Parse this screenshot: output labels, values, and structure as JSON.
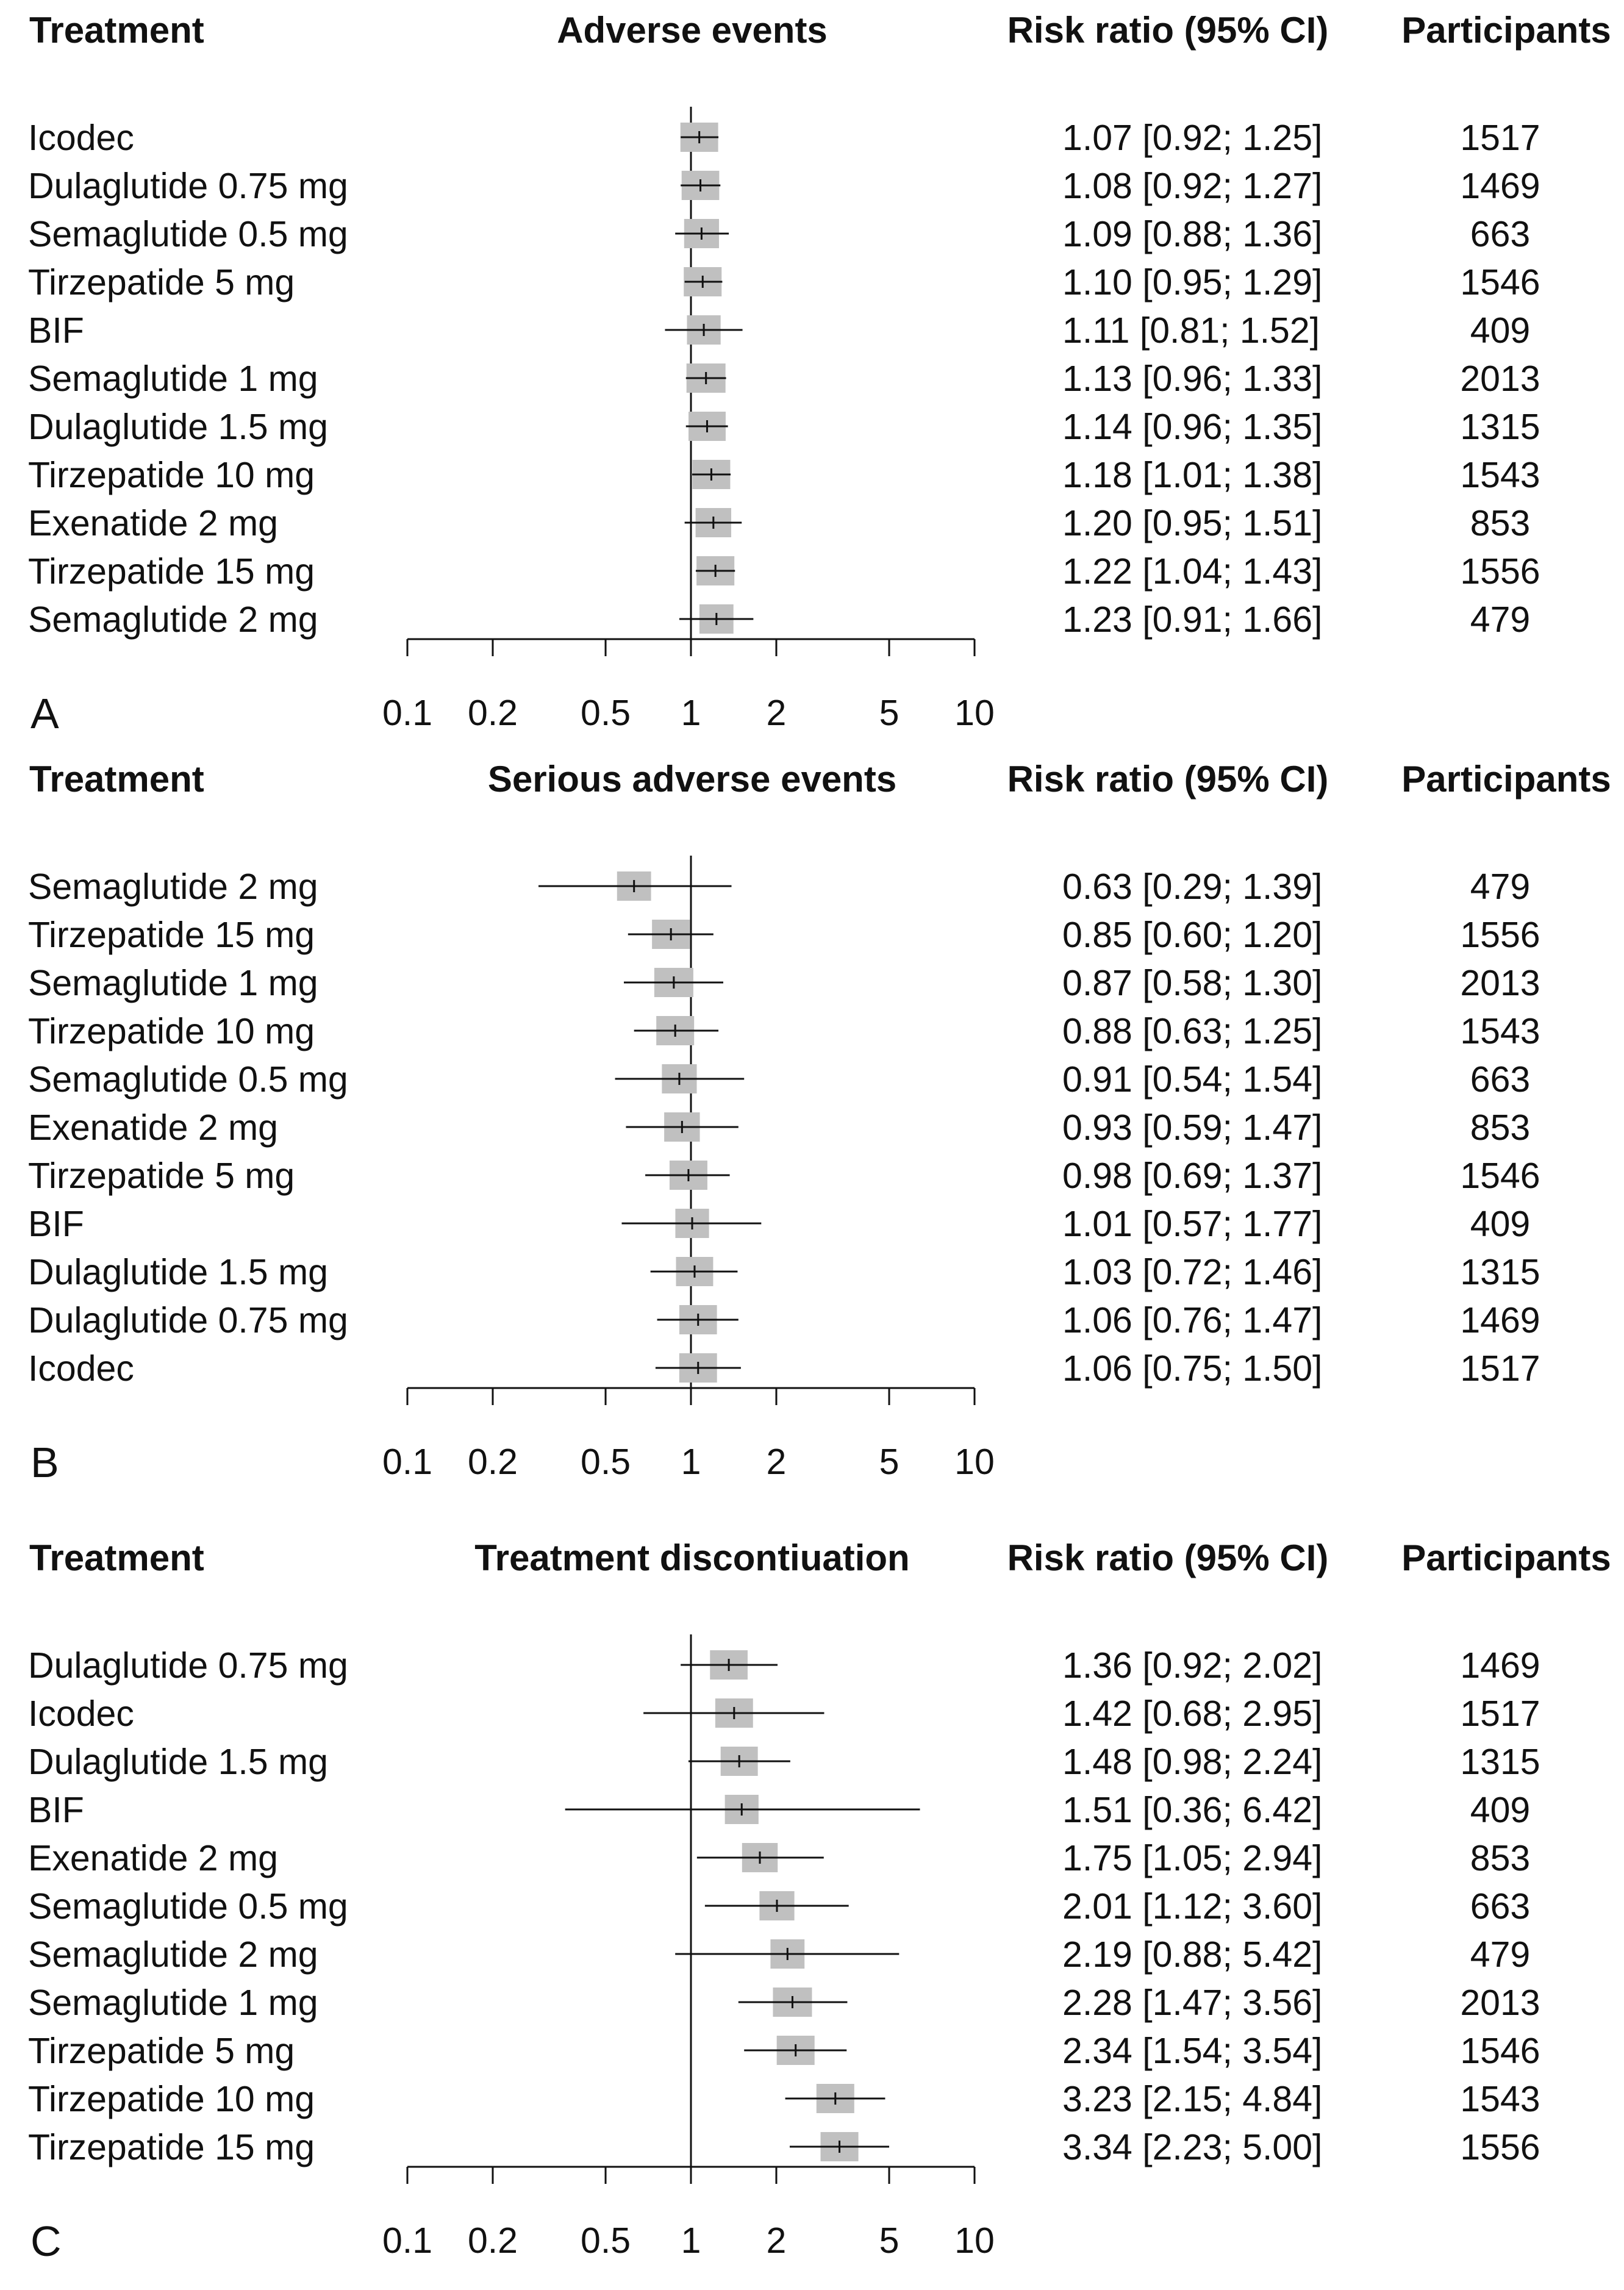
{
  "chart_data": [
    {
      "type": "forest",
      "panel_letter": "A",
      "title": "Adverse events",
      "headers": {
        "treatment": "Treatment",
        "estimate": "Risk ratio (95% CI)",
        "participants": "Participants"
      },
      "xscale": "log",
      "xlim": [
        0.1,
        10
      ],
      "reference_line": 1,
      "xticks": [
        0.1,
        0.2,
        0.5,
        1,
        2,
        5,
        10
      ],
      "xtick_labels": [
        "0.1",
        "0.2",
        "0.5",
        "1",
        "2",
        "5",
        "10"
      ],
      "rows": [
        {
          "name": "Icodec",
          "rr": 1.07,
          "lo": 0.92,
          "hi": 1.25,
          "ci_text": "1.07 [0.92; 1.25]",
          "n": 1517
        },
        {
          "name": "Dulaglutide 0.75 mg",
          "rr": 1.08,
          "lo": 0.92,
          "hi": 1.27,
          "ci_text": "1.08 [0.92; 1.27]",
          "n": 1469
        },
        {
          "name": "Semaglutide 0.5 mg",
          "rr": 1.09,
          "lo": 0.88,
          "hi": 1.36,
          "ci_text": "1.09 [0.88; 1.36]",
          "n": 663
        },
        {
          "name": "Tirzepatide 5 mg",
          "rr": 1.1,
          "lo": 0.95,
          "hi": 1.29,
          "ci_text": "1.10 [0.95; 1.29]",
          "n": 1546
        },
        {
          "name": "BIF",
          "rr": 1.11,
          "lo": 0.81,
          "hi": 1.52,
          "ci_text": "1.11 [0.81; 1.52]",
          "n": 409
        },
        {
          "name": "Semaglutide 1 mg",
          "rr": 1.13,
          "lo": 0.96,
          "hi": 1.33,
          "ci_text": "1.13 [0.96; 1.33]",
          "n": 2013
        },
        {
          "name": "Dulaglutide 1.5 mg",
          "rr": 1.14,
          "lo": 0.96,
          "hi": 1.35,
          "ci_text": "1.14 [0.96; 1.35]",
          "n": 1315
        },
        {
          "name": "Tirzepatide 10 mg",
          "rr": 1.18,
          "lo": 1.01,
          "hi": 1.38,
          "ci_text": "1.18 [1.01; 1.38]",
          "n": 1543
        },
        {
          "name": "Exenatide 2 mg",
          "rr": 1.2,
          "lo": 0.95,
          "hi": 1.51,
          "ci_text": "1.20 [0.95; 1.51]",
          "n": 853
        },
        {
          "name": "Tirzepatide 15 mg",
          "rr": 1.22,
          "lo": 1.04,
          "hi": 1.43,
          "ci_text": "1.22 [1.04; 1.43]",
          "n": 1556
        },
        {
          "name": "Semaglutide 2 mg",
          "rr": 1.23,
          "lo": 0.91,
          "hi": 1.66,
          "ci_text": "1.23 [0.91; 1.66]",
          "n": 479
        }
      ]
    },
    {
      "type": "forest",
      "panel_letter": "B",
      "title": "Serious adverse events",
      "headers": {
        "treatment": "Treatment",
        "estimate": "Risk ratio (95% CI)",
        "participants": "Participants"
      },
      "xscale": "log",
      "xlim": [
        0.1,
        10
      ],
      "reference_line": 1,
      "xticks": [
        0.1,
        0.2,
        0.5,
        1,
        2,
        5,
        10
      ],
      "xtick_labels": [
        "0.1",
        "0.2",
        "0.5",
        "1",
        "2",
        "5",
        "10"
      ],
      "rows": [
        {
          "name": "Semaglutide 2 mg",
          "rr": 0.63,
          "lo": 0.29,
          "hi": 1.39,
          "ci_text": "0.63 [0.29; 1.39]",
          "n": 479
        },
        {
          "name": "Tirzepatide 15 mg",
          "rr": 0.85,
          "lo": 0.6,
          "hi": 1.2,
          "ci_text": "0.85 [0.60; 1.20]",
          "n": 1556
        },
        {
          "name": "Semaglutide 1 mg",
          "rr": 0.87,
          "lo": 0.58,
          "hi": 1.3,
          "ci_text": "0.87 [0.58; 1.30]",
          "n": 2013
        },
        {
          "name": "Tirzepatide 10 mg",
          "rr": 0.88,
          "lo": 0.63,
          "hi": 1.25,
          "ci_text": "0.88 [0.63; 1.25]",
          "n": 1543
        },
        {
          "name": "Semaglutide 0.5 mg",
          "rr": 0.91,
          "lo": 0.54,
          "hi": 1.54,
          "ci_text": "0.91 [0.54; 1.54]",
          "n": 663
        },
        {
          "name": "Exenatide 2 mg",
          "rr": 0.93,
          "lo": 0.59,
          "hi": 1.47,
          "ci_text": "0.93 [0.59; 1.47]",
          "n": 853
        },
        {
          "name": "Tirzepatide 5 mg",
          "rr": 0.98,
          "lo": 0.69,
          "hi": 1.37,
          "ci_text": "0.98 [0.69; 1.37]",
          "n": 1546
        },
        {
          "name": "BIF",
          "rr": 1.01,
          "lo": 0.57,
          "hi": 1.77,
          "ci_text": "1.01 [0.57; 1.77]",
          "n": 409
        },
        {
          "name": "Dulaglutide 1.5 mg",
          "rr": 1.03,
          "lo": 0.72,
          "hi": 1.46,
          "ci_text": "1.03 [0.72; 1.46]",
          "n": 1315
        },
        {
          "name": "Dulaglutide 0.75 mg",
          "rr": 1.06,
          "lo": 0.76,
          "hi": 1.47,
          "ci_text": "1.06 [0.76; 1.47]",
          "n": 1469
        },
        {
          "name": "Icodec",
          "rr": 1.06,
          "lo": 0.75,
          "hi": 1.5,
          "ci_text": "1.06 [0.75; 1.50]",
          "n": 1517
        }
      ]
    },
    {
      "type": "forest",
      "panel_letter": "C",
      "title": "Treatment discontiuation",
      "headers": {
        "treatment": "Treatment",
        "estimate": "Risk ratio (95% CI)",
        "participants": "Participants"
      },
      "xscale": "log",
      "xlim": [
        0.1,
        10
      ],
      "reference_line": 1,
      "xticks": [
        0.1,
        0.2,
        0.5,
        1,
        2,
        5,
        10
      ],
      "xtick_labels": [
        "0.1",
        "0.2",
        "0.5",
        "1",
        "2",
        "5",
        "10"
      ],
      "rows": [
        {
          "name": "Dulaglutide 0.75 mg",
          "rr": 1.36,
          "lo": 0.92,
          "hi": 2.02,
          "ci_text": "1.36 [0.92; 2.02]",
          "n": 1469
        },
        {
          "name": "Icodec",
          "rr": 1.42,
          "lo": 0.68,
          "hi": 2.95,
          "ci_text": "1.42 [0.68; 2.95]",
          "n": 1517
        },
        {
          "name": "Dulaglutide 1.5 mg",
          "rr": 1.48,
          "lo": 0.98,
          "hi": 2.24,
          "ci_text": "1.48 [0.98; 2.24]",
          "n": 1315
        },
        {
          "name": "BIF",
          "rr": 1.51,
          "lo": 0.36,
          "hi": 6.42,
          "ci_text": "1.51 [0.36; 6.42]",
          "n": 409
        },
        {
          "name": "Exenatide 2 mg",
          "rr": 1.75,
          "lo": 1.05,
          "hi": 2.94,
          "ci_text": "1.75 [1.05; 2.94]",
          "n": 853
        },
        {
          "name": "Semaglutide 0.5 mg",
          "rr": 2.01,
          "lo": 1.12,
          "hi": 3.6,
          "ci_text": "2.01 [1.12; 3.60]",
          "n": 663
        },
        {
          "name": "Semaglutide 2 mg",
          "rr": 2.19,
          "lo": 0.88,
          "hi": 5.42,
          "ci_text": "2.19 [0.88; 5.42]",
          "n": 479
        },
        {
          "name": "Semaglutide 1 mg",
          "rr": 2.28,
          "lo": 1.47,
          "hi": 3.56,
          "ci_text": "2.28 [1.47; 3.56]",
          "n": 2013
        },
        {
          "name": "Tirzepatide 5 mg",
          "rr": 2.34,
          "lo": 1.54,
          "hi": 3.54,
          "ci_text": "2.34 [1.54; 3.54]",
          "n": 1546
        },
        {
          "name": "Tirzepatide 10 mg",
          "rr": 3.23,
          "lo": 2.15,
          "hi": 4.84,
          "ci_text": "3.23 [2.15; 4.84]",
          "n": 1543
        },
        {
          "name": "Tirzepatide 15 mg",
          "rr": 3.34,
          "lo": 2.23,
          "hi": 5.0,
          "ci_text": "3.34 [2.23; 5.00]",
          "n": 1556
        }
      ]
    }
  ],
  "colors": {
    "box": "#c0c0c0",
    "line": "#111111"
  }
}
